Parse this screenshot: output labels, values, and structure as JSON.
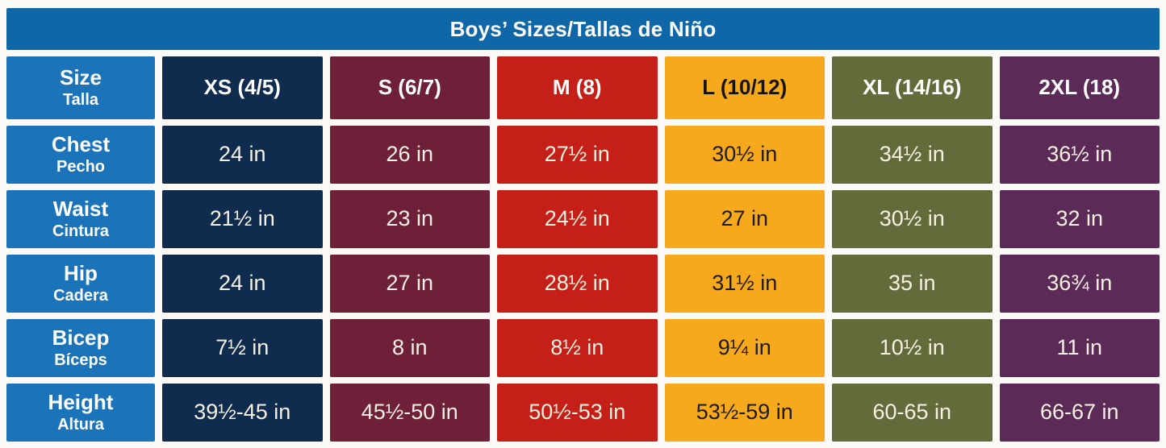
{
  "title": "Boys’ Sizes/Tallas de Niño",
  "colors": {
    "title_bar": "#0f67a8",
    "row_label_blue": "#1b73b9",
    "navy": "#0f2c4e",
    "burgundy": "#6e2039",
    "red": "#c42017",
    "orange": "#f6a91d",
    "olive": "#646b3b",
    "purple": "#5c2a56",
    "light_text": "#ffffff",
    "cream_value_text": "#f6f1e2",
    "dark_text": "#1d1b12",
    "page_background": "#fbfaf6"
  },
  "columns": [
    {
      "label": "Size",
      "sublabel": "Talla",
      "bg": "#1b73b9",
      "fg": "#ffffff",
      "fg_value": "#ffffff"
    },
    {
      "label": "XS (4/5)",
      "bg": "#0f2c4e",
      "fg": "#ffffff",
      "fg_value": "#f6f1e2"
    },
    {
      "label": "S (6/7)",
      "bg": "#6e2039",
      "fg": "#ffffff",
      "fg_value": "#f6f1e2"
    },
    {
      "label": "M (8)",
      "bg": "#c42017",
      "fg": "#ffffff",
      "fg_value": "#f6f1e2"
    },
    {
      "label": "L (10/12)",
      "bg": "#f6a91d",
      "fg": "#15130c",
      "fg_value": "#1d1b12"
    },
    {
      "label": "XL (14/16)",
      "bg": "#646b3b",
      "fg": "#ffffff",
      "fg_value": "#f6f1e2"
    },
    {
      "label": "2XL (18)",
      "bg": "#5c2a56",
      "fg": "#ffffff",
      "fg_value": "#f6f1e2"
    }
  ],
  "rows": [
    {
      "label": "Chest",
      "sublabel": "Pecho",
      "values": [
        "24 in",
        "26 in",
        "27½ in",
        "30½ in",
        "34½ in",
        "36½ in"
      ]
    },
    {
      "label": "Waist",
      "sublabel": "Cintura",
      "values": [
        "21½ in",
        "23 in",
        "24½ in",
        "27 in",
        "30½ in",
        "32 in"
      ]
    },
    {
      "label": "Hip",
      "sublabel": "Cadera",
      "values": [
        "24 in",
        "27 in",
        "28½ in",
        "31½ in",
        "35 in",
        "36¾ in"
      ]
    },
    {
      "label": "Bicep",
      "sublabel": "Bíceps",
      "values": [
        "7½ in",
        "8 in",
        "8½ in",
        "9¼ in",
        "10½ in",
        "11 in"
      ]
    },
    {
      "label": "Height",
      "sublabel": "Altura",
      "values": [
        "39½-45 in",
        "45½-50 in",
        "50½-53 in",
        "53½-59 in",
        "60-65 in",
        "66-67 in"
      ]
    }
  ],
  "chart_data": {
    "type": "table",
    "title": "Boys’ Sizes/Tallas de Niño",
    "columns": [
      "Size/Talla",
      "XS (4/5)",
      "S (6/7)",
      "M (8)",
      "L (10/12)",
      "XL (14/16)",
      "2XL (18)"
    ],
    "rows": [
      [
        "Chest/Pecho",
        "24 in",
        "26 in",
        "27½ in",
        "30½ in",
        "34½ in",
        "36½ in"
      ],
      [
        "Waist/Cintura",
        "21½ in",
        "23 in",
        "24½ in",
        "27 in",
        "30½ in",
        "32 in"
      ],
      [
        "Hip/Cadera",
        "24 in",
        "27 in",
        "28½ in",
        "31½ in",
        "35 in",
        "36¾ in"
      ],
      [
        "Bicep/Bíceps",
        "7½ in",
        "8 in",
        "8½ in",
        "9¼ in",
        "10½ in",
        "11 in"
      ],
      [
        "Height/Altura",
        "39½-45 in",
        "45½-50 in",
        "50½-53 in",
        "53½-59 in",
        "60-65 in",
        "66-67 in"
      ]
    ]
  }
}
